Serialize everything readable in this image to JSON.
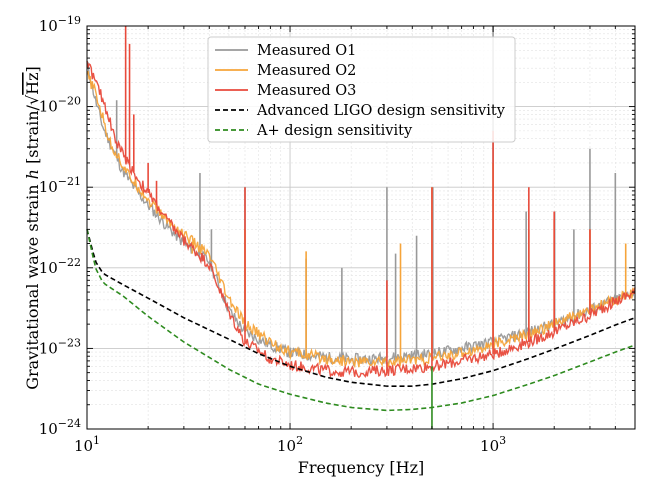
{
  "chart_data": {
    "type": "line",
    "xscale": "log",
    "yscale": "log",
    "xlim": [
      10,
      5000
    ],
    "ylim": [
      1e-24,
      1e-19
    ],
    "xlabel": "Frequency [Hz]",
    "ylabel": "Gravitational wave strain h [strain/√Hz]",
    "ylabel_parts": {
      "main": "Gravitational wave strain ",
      "var": "h",
      "unit_open": " [strain/",
      "sqrt_arg": "Hz",
      "unit_close": "]"
    },
    "x_ticks": [
      {
        "value": 10,
        "base": "10",
        "exp": "1"
      },
      {
        "value": 100,
        "base": "10",
        "exp": "2"
      },
      {
        "value": 1000,
        "base": "10",
        "exp": "3"
      }
    ],
    "y_ticks": [
      {
        "value": 1e-24,
        "base": "10",
        "exp": "−24"
      },
      {
        "value": 1e-23,
        "base": "10",
        "exp": "−23"
      },
      {
        "value": 1e-22,
        "base": "10",
        "exp": "−22"
      },
      {
        "value": 1e-21,
        "base": "10",
        "exp": "−21"
      },
      {
        "value": 1e-20,
        "base": "10",
        "exp": "−20"
      },
      {
        "value": 1e-19,
        "base": "10",
        "exp": "−19"
      }
    ],
    "grid": true,
    "legend_position": "top-center",
    "series": [
      {
        "name": "Measured O1",
        "color": "#999999",
        "style": "solid",
        "base": [
          [
            10,
            3.5e-20
          ],
          [
            11,
            1.2e-20
          ],
          [
            12,
            5.5e-21
          ],
          [
            13,
            3.5e-21
          ],
          [
            14,
            2.3e-21
          ],
          [
            15,
            1.6e-21
          ],
          [
            17,
            1e-21
          ],
          [
            20,
            6e-22
          ],
          [
            25,
            3.2e-22
          ],
          [
            30,
            2e-22
          ],
          [
            40,
            1.2e-22
          ],
          [
            50,
            3e-23
          ],
          [
            60,
            1.6e-23
          ],
          [
            80,
            1.1e-23
          ],
          [
            100,
            8.8e-24
          ],
          [
            150,
            7.8e-24
          ],
          [
            200,
            7.3e-24
          ],
          [
            300,
            7.6e-24
          ],
          [
            500,
            8.6e-24
          ],
          [
            700,
            1e-23
          ],
          [
            1000,
            1.2e-23
          ],
          [
            1500,
            1.6e-23
          ],
          [
            2000,
            2e-23
          ],
          [
            3000,
            3e-23
          ],
          [
            4000,
            4e-23
          ],
          [
            5000,
            5e-23
          ]
        ],
        "spikes": [
          [
            14,
            1.2e-20
          ],
          [
            28,
            3e-22
          ],
          [
            30,
            2.5e-22
          ],
          [
            36,
            1.5e-21
          ],
          [
            41,
            3e-22
          ],
          [
            60,
            1e-21
          ],
          [
            120,
            1.3e-22
          ],
          [
            180,
            1e-22
          ],
          [
            300,
            1e-21
          ],
          [
            331,
            1.5e-22
          ],
          [
            420,
            2.5e-22
          ],
          [
            505,
            1e-21
          ],
          [
            1000,
            1e-19
          ],
          [
            1455,
            5e-22
          ],
          [
            2010,
            5e-22
          ],
          [
            2500,
            3e-22
          ],
          [
            3000,
            3e-21
          ],
          [
            4000,
            1.5e-21
          ]
        ]
      },
      {
        "name": "Measured O2",
        "color": "#f6a43a",
        "style": "solid",
        "base": [
          [
            10,
            2.5e-20
          ],
          [
            11,
            1.5e-20
          ],
          [
            12,
            7e-21
          ],
          [
            13,
            3.5e-21
          ],
          [
            14,
            2.6e-21
          ],
          [
            16,
            1.4e-21
          ],
          [
            18,
            1e-21
          ],
          [
            20,
            7e-22
          ],
          [
            25,
            3.8e-22
          ],
          [
            30,
            2.6e-22
          ],
          [
            40,
            1.4e-22
          ],
          [
            50,
            4e-23
          ],
          [
            60,
            2e-23
          ],
          [
            80,
            1.2e-23
          ],
          [
            100,
            9e-24
          ],
          [
            150,
            7.5e-24
          ],
          [
            200,
            6.8e-24
          ],
          [
            300,
            6.8e-24
          ],
          [
            500,
            7.5e-24
          ],
          [
            700,
            8.8e-24
          ],
          [
            1000,
            1.1e-23
          ],
          [
            1500,
            1.5e-23
          ],
          [
            2000,
            2e-23
          ],
          [
            3000,
            3e-23
          ],
          [
            4000,
            4e-23
          ],
          [
            5000,
            5e-23
          ]
        ],
        "spikes": [
          [
            33,
            1.5e-22
          ],
          [
            60,
            3e-22
          ],
          [
            120,
            1.6e-22
          ],
          [
            350,
            2e-22
          ],
          [
            500,
            1e-21
          ],
          [
            1000,
            2e-21
          ],
          [
            1500,
            3e-22
          ],
          [
            2000,
            4e-22
          ],
          [
            3000,
            3e-22
          ],
          [
            4500,
            2e-22
          ]
        ]
      },
      {
        "name": "Measured O3",
        "color": "#e84a3b",
        "style": "solid",
        "base": [
          [
            10,
            3.8e-20
          ],
          [
            11,
            2e-20
          ],
          [
            12,
            1.2e-20
          ],
          [
            13,
            6.5e-21
          ],
          [
            14,
            3.5e-21
          ],
          [
            16,
            2e-21
          ],
          [
            18,
            1.2e-21
          ],
          [
            20,
            8.5e-22
          ],
          [
            25,
            3.8e-22
          ],
          [
            30,
            2.2e-22
          ],
          [
            40,
            1.1e-22
          ],
          [
            50,
            2.8e-23
          ],
          [
            60,
            1.2e-23
          ],
          [
            80,
            7.5e-24
          ],
          [
            100,
            6.2e-24
          ],
          [
            150,
            5.3e-24
          ],
          [
            200,
            5.1e-24
          ],
          [
            300,
            5.3e-24
          ],
          [
            500,
            6e-24
          ],
          [
            700,
            7e-24
          ],
          [
            1000,
            8.5e-24
          ],
          [
            1500,
            1.2e-23
          ],
          [
            2000,
            1.6e-23
          ],
          [
            3000,
            2.6e-23
          ],
          [
            4000,
            3.8e-23
          ],
          [
            5000,
            5e-23
          ]
        ],
        "spikes": [
          [
            15.5,
            1e-19
          ],
          [
            16.2,
            6e-20
          ],
          [
            17,
            8e-21
          ],
          [
            20,
            2e-21
          ],
          [
            22,
            1.2e-21
          ],
          [
            60,
            1e-21
          ],
          [
            300,
            7e-23
          ],
          [
            500,
            1e-21
          ],
          [
            1000,
            5e-21
          ],
          [
            1500,
            1e-21
          ],
          [
            2000,
            5e-22
          ],
          [
            3000,
            3e-22
          ]
        ]
      },
      {
        "name": "Advanced LIGO design sensitivity",
        "color": "#000000",
        "style": "dashed",
        "base": [
          [
            10,
            3e-22
          ],
          [
            11,
            1.2e-22
          ],
          [
            12,
            8.5e-23
          ],
          [
            15,
            6.2e-23
          ],
          [
            20,
            4.2e-23
          ],
          [
            30,
            2.4e-23
          ],
          [
            50,
            1.3e-23
          ],
          [
            70,
            8.6e-24
          ],
          [
            100,
            6e-24
          ],
          [
            150,
            4.4e-24
          ],
          [
            200,
            3.8e-24
          ],
          [
            300,
            3.4e-24
          ],
          [
            400,
            3.4e-24
          ],
          [
            500,
            3.6e-24
          ],
          [
            700,
            4.2e-24
          ],
          [
            1000,
            5.3e-24
          ],
          [
            1500,
            7.5e-24
          ],
          [
            2000,
            9.8e-24
          ],
          [
            3000,
            1.45e-23
          ],
          [
            4000,
            1.95e-23
          ],
          [
            5000,
            2.4e-23
          ]
        ],
        "spikes": []
      },
      {
        "name": "A+ design sensitivity",
        "color": "#2e8b1f",
        "style": "dashed",
        "base": [
          [
            10,
            3e-22
          ],
          [
            11,
            1e-22
          ],
          [
            12,
            6.5e-23
          ],
          [
            15,
            4.5e-23
          ],
          [
            20,
            2.5e-23
          ],
          [
            30,
            1.2e-23
          ],
          [
            50,
            5.5e-24
          ],
          [
            70,
            3.6e-24
          ],
          [
            100,
            2.7e-24
          ],
          [
            150,
            2.1e-24
          ],
          [
            200,
            1.85e-24
          ],
          [
            300,
            1.7e-24
          ],
          [
            400,
            1.75e-24
          ],
          [
            500,
            1.85e-24
          ],
          [
            700,
            2.1e-24
          ],
          [
            1000,
            2.6e-24
          ],
          [
            1500,
            3.6e-24
          ],
          [
            2000,
            4.6e-24
          ],
          [
            3000,
            6.8e-24
          ],
          [
            4000,
            9e-24
          ],
          [
            5000,
            1.1e-23
          ]
        ],
        "spikes": [
          [
            500,
            6e-24
          ],
          [
            500,
            1e-24
          ]
        ]
      }
    ]
  }
}
